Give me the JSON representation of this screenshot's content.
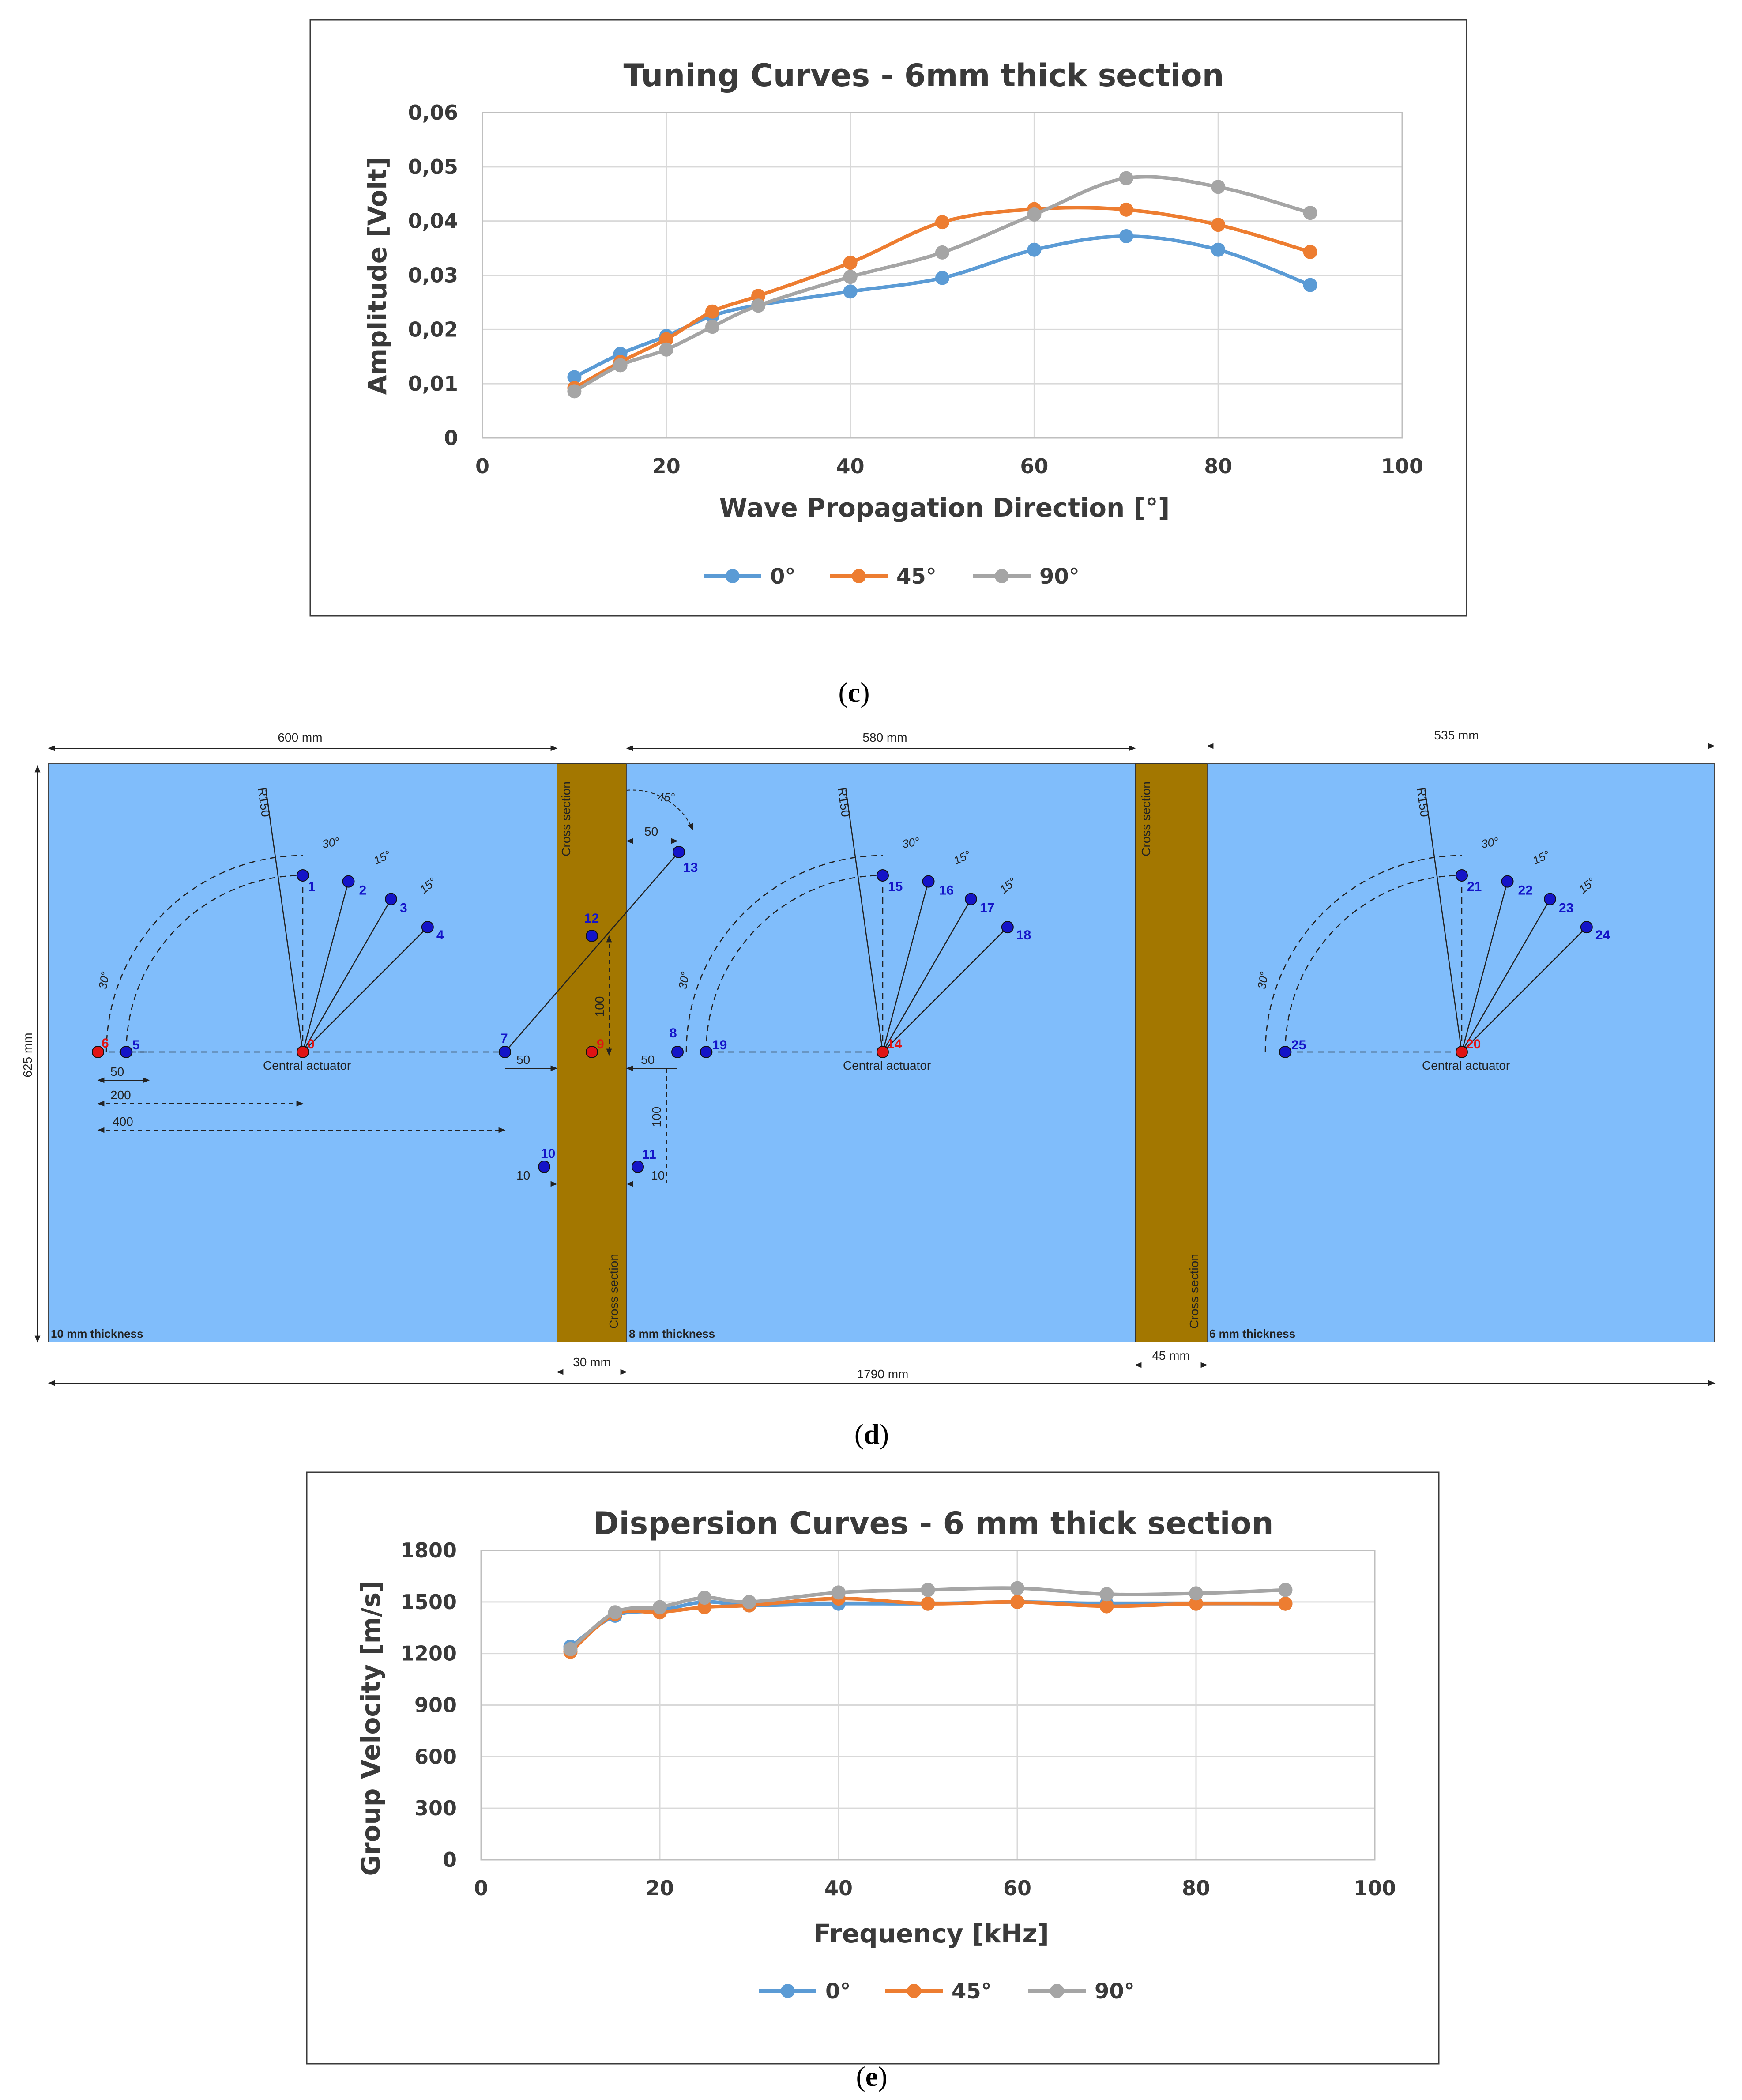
{
  "chart_data": [
    {
      "panel": "c",
      "type": "line",
      "title": "Tuning Curves - 6mm thick section",
      "xlabel": "Wave Propagation Direction [°]",
      "ylabel": "Amplitude [Volt]",
      "xlim": [
        0,
        100
      ],
      "ylim": [
        0,
        0.06
      ],
      "xticks": [
        "0",
        "20",
        "40",
        "60",
        "80",
        "100"
      ],
      "yticks": [
        "0",
        "0,01",
        "0,02",
        "0,03",
        "0,04",
        "0,05",
        "0,06"
      ],
      "grid": true,
      "legend": "bottom-center",
      "x": [
        10,
        15,
        20,
        25,
        30,
        40,
        50,
        60,
        70,
        80,
        90
      ],
      "series": [
        {
          "name": "0°",
          "color": "#5b9bd5",
          "values": [
            0.0112,
            0.0155,
            0.0188,
            0.0225,
            0.0245,
            0.027,
            0.0295,
            0.0347,
            0.0372,
            0.0347,
            0.0282
          ]
        },
        {
          "name": "45°",
          "color": "#ed7d31",
          "values": [
            0.0092,
            0.014,
            0.0182,
            0.0233,
            0.0262,
            0.0323,
            0.0398,
            0.0422,
            0.0421,
            0.0393,
            0.0343
          ]
        },
        {
          "name": "90°",
          "color": "#a5a5a5",
          "values": [
            0.0086,
            0.0134,
            0.0163,
            0.0205,
            0.0244,
            0.0297,
            0.0342,
            0.0412,
            0.0479,
            0.0463,
            0.0415
          ]
        }
      ]
    },
    {
      "panel": "e",
      "type": "line",
      "title": "Dispersion Curves - 6 mm thick section",
      "xlabel": "Frequency [kHz]",
      "ylabel": "Group Velocity [m/s]",
      "xlim": [
        0,
        100
      ],
      "ylim": [
        0,
        1800
      ],
      "xticks": [
        "0",
        "20",
        "40",
        "60",
        "80",
        "100"
      ],
      "yticks": [
        "0",
        "300",
        "600",
        "900",
        "1200",
        "1500",
        "1800"
      ],
      "grid": true,
      "legend": "bottom-center",
      "x": [
        10,
        15,
        20,
        25,
        30,
        40,
        50,
        60,
        70,
        80,
        90
      ],
      "series": [
        {
          "name": "0°",
          "color": "#5b9bd5",
          "values": [
            1240,
            1420,
            1450,
            1500,
            1480,
            1490,
            1490,
            1500,
            1490,
            1490,
            1490
          ]
        },
        {
          "name": "45°",
          "color": "#ed7d31",
          "values": [
            1210,
            1430,
            1440,
            1470,
            1480,
            1520,
            1490,
            1500,
            1475,
            1490,
            1490
          ]
        },
        {
          "name": "90°",
          "color": "#a5a5a5",
          "values": [
            1225,
            1440,
            1470,
            1525,
            1500,
            1555,
            1570,
            1580,
            1545,
            1550,
            1570
          ]
        }
      ]
    }
  ],
  "captions": {
    "c": "c",
    "d": "d",
    "e": "e"
  },
  "diagram": {
    "dimensions": {
      "w1": "600 mm",
      "w2": "580 mm",
      "w3": "535 mm",
      "height": "625 mm",
      "strip1": "30 mm",
      "strip2": "45 mm",
      "total": "1790 mm"
    },
    "labels": {
      "cross_section": "Cross section",
      "central_actuator": "Central actuator",
      "thick10": "10 mm thickness",
      "thick8": "8 mm thickness",
      "thick6": "6 mm thickness",
      "r150": "R150",
      "a15": "15°",
      "a30": "30°",
      "a45": "45°",
      "d50": "50",
      "d200": "200",
      "d400": "400",
      "d100": "100",
      "d10": "10"
    },
    "sensors": {
      "s0": "0",
      "s1": "1",
      "s2": "2",
      "s3": "3",
      "s4": "4",
      "s5": "5",
      "s6": "6",
      "s7": "7",
      "s8": "8",
      "s9": "9",
      "s10": "10",
      "s11": "11",
      "s12": "12",
      "s13": "13",
      "s14": "14",
      "s15": "15",
      "s16": "16",
      "s17": "17",
      "s18": "18",
      "s19": "19",
      "s20": "20",
      "s21": "21",
      "s22": "22",
      "s23": "23",
      "s24": "24",
      "s25": "25"
    },
    "colors": {
      "plate": "#80bdfb",
      "strip": "#a37700",
      "sensor": "#1414c8",
      "actuator": "#e01414"
    }
  }
}
